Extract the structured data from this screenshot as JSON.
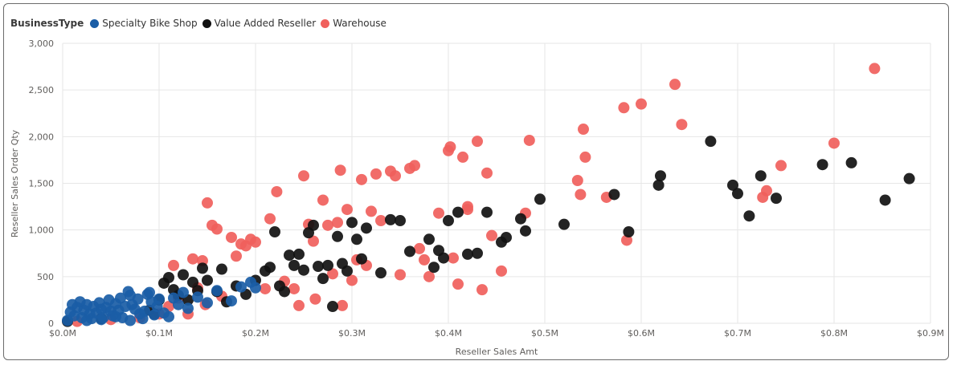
{
  "chart_data": {
    "type": "scatter",
    "title": "",
    "xlabel": "Reseller Sales Amt",
    "ylabel": "Reseller Sales Order Qty",
    "xlim": [
      0,
      0.9
    ],
    "ylim": [
      0,
      3000
    ],
    "x_unit": "$M",
    "xticks": [
      0,
      0.1,
      0.2,
      0.3,
      0.4,
      0.5,
      0.6,
      0.7,
      0.8,
      0.9
    ],
    "xtick_labels": [
      "$0.0M",
      "$0.1M",
      "$0.2M",
      "$0.3M",
      "$0.4M",
      "$0.5M",
      "$0.6M",
      "$0.7M",
      "$0.8M",
      "$0.9M"
    ],
    "yticks": [
      0,
      500,
      1000,
      1500,
      2000,
      2500,
      3000
    ],
    "ytick_labels": [
      "0",
      "500",
      "1,000",
      "1,500",
      "2,000",
      "2,500",
      "3,000"
    ],
    "grid": true,
    "legend": {
      "title": "BusinessType",
      "placement": "top-left"
    },
    "series": [
      {
        "name": "Specialty Bike Shop",
        "color": "#1a5da6",
        "points": [
          [
            0.005,
            30
          ],
          [
            0.008,
            120
          ],
          [
            0.01,
            200
          ],
          [
            0.012,
            80
          ],
          [
            0.015,
            170
          ],
          [
            0.018,
            230
          ],
          [
            0.02,
            60
          ],
          [
            0.022,
            140
          ],
          [
            0.025,
            200
          ],
          [
            0.028,
            100
          ],
          [
            0.03,
            50
          ],
          [
            0.032,
            180
          ],
          [
            0.035,
            110
          ],
          [
            0.038,
            220
          ],
          [
            0.04,
            150
          ],
          [
            0.042,
            60
          ],
          [
            0.045,
            170
          ],
          [
            0.048,
            250
          ],
          [
            0.05,
            130
          ],
          [
            0.052,
            80
          ],
          [
            0.055,
            210
          ],
          [
            0.058,
            140
          ],
          [
            0.06,
            270
          ],
          [
            0.062,
            60
          ],
          [
            0.065,
            180
          ],
          [
            0.068,
            340
          ],
          [
            0.07,
            300
          ],
          [
            0.072,
            200
          ],
          [
            0.075,
            150
          ],
          [
            0.078,
            260
          ],
          [
            0.08,
            100
          ],
          [
            0.083,
            50
          ],
          [
            0.085,
            130
          ],
          [
            0.088,
            310
          ],
          [
            0.09,
            330
          ],
          [
            0.092,
            230
          ],
          [
            0.095,
            90
          ],
          [
            0.098,
            180
          ],
          [
            0.1,
            260
          ],
          [
            0.105,
            110
          ],
          [
            0.11,
            70
          ],
          [
            0.115,
            270
          ],
          [
            0.12,
            200
          ],
          [
            0.125,
            330
          ],
          [
            0.13,
            160
          ],
          [
            0.14,
            280
          ],
          [
            0.15,
            220
          ],
          [
            0.16,
            350
          ],
          [
            0.175,
            240
          ],
          [
            0.185,
            390
          ],
          [
            0.195,
            440
          ],
          [
            0.2,
            380
          ],
          [
            0.025,
            30
          ],
          [
            0.04,
            40
          ],
          [
            0.055,
            70
          ],
          [
            0.07,
            30
          ]
        ]
      },
      {
        "name": "Value Added Reseller",
        "color": "#111111",
        "points": [
          [
            0.005,
            20
          ],
          [
            0.04,
            50
          ],
          [
            0.09,
            140
          ],
          [
            0.095,
            100
          ],
          [
            0.1,
            250
          ],
          [
            0.105,
            430
          ],
          [
            0.11,
            490
          ],
          [
            0.115,
            360
          ],
          [
            0.12,
            300
          ],
          [
            0.125,
            520
          ],
          [
            0.13,
            250
          ],
          [
            0.135,
            440
          ],
          [
            0.14,
            350
          ],
          [
            0.145,
            590
          ],
          [
            0.15,
            460
          ],
          [
            0.16,
            340
          ],
          [
            0.165,
            580
          ],
          [
            0.17,
            230
          ],
          [
            0.18,
            400
          ],
          [
            0.19,
            310
          ],
          [
            0.2,
            460
          ],
          [
            0.21,
            560
          ],
          [
            0.215,
            600
          ],
          [
            0.22,
            980
          ],
          [
            0.225,
            400
          ],
          [
            0.23,
            340
          ],
          [
            0.235,
            730
          ],
          [
            0.24,
            620
          ],
          [
            0.245,
            740
          ],
          [
            0.25,
            570
          ],
          [
            0.255,
            970
          ],
          [
            0.26,
            1050
          ],
          [
            0.265,
            610
          ],
          [
            0.27,
            480
          ],
          [
            0.275,
            620
          ],
          [
            0.28,
            180
          ],
          [
            0.285,
            930
          ],
          [
            0.29,
            640
          ],
          [
            0.295,
            560
          ],
          [
            0.3,
            1080
          ],
          [
            0.305,
            900
          ],
          [
            0.31,
            690
          ],
          [
            0.315,
            1020
          ],
          [
            0.33,
            540
          ],
          [
            0.34,
            1110
          ],
          [
            0.35,
            1100
          ],
          [
            0.36,
            770
          ],
          [
            0.38,
            900
          ],
          [
            0.385,
            600
          ],
          [
            0.39,
            780
          ],
          [
            0.395,
            700
          ],
          [
            0.4,
            1100
          ],
          [
            0.41,
            1190
          ],
          [
            0.42,
            740
          ],
          [
            0.43,
            750
          ],
          [
            0.44,
            1190
          ],
          [
            0.455,
            870
          ],
          [
            0.46,
            920
          ],
          [
            0.475,
            1120
          ],
          [
            0.48,
            990
          ],
          [
            0.495,
            1330
          ],
          [
            0.52,
            1060
          ],
          [
            0.572,
            1380
          ],
          [
            0.587,
            980
          ],
          [
            0.618,
            1480
          ],
          [
            0.62,
            1580
          ],
          [
            0.672,
            1950
          ],
          [
            0.695,
            1480
          ],
          [
            0.7,
            1390
          ],
          [
            0.712,
            1150
          ],
          [
            0.724,
            1580
          ],
          [
            0.74,
            1340
          ],
          [
            0.788,
            1700
          ],
          [
            0.818,
            1720
          ],
          [
            0.853,
            1320
          ],
          [
            0.878,
            1550
          ]
        ]
      },
      {
        "name": "Warehouse",
        "color": "#f0605c",
        "points": [
          [
            0.015,
            20
          ],
          [
            0.05,
            40
          ],
          [
            0.08,
            60
          ],
          [
            0.1,
            100
          ],
          [
            0.11,
            180
          ],
          [
            0.115,
            620
          ],
          [
            0.12,
            270
          ],
          [
            0.13,
            100
          ],
          [
            0.135,
            690
          ],
          [
            0.14,
            380
          ],
          [
            0.145,
            670
          ],
          [
            0.148,
            200
          ],
          [
            0.15,
            1290
          ],
          [
            0.155,
            1050
          ],
          [
            0.16,
            1010
          ],
          [
            0.165,
            290
          ],
          [
            0.175,
            920
          ],
          [
            0.18,
            720
          ],
          [
            0.185,
            850
          ],
          [
            0.19,
            830
          ],
          [
            0.195,
            900
          ],
          [
            0.2,
            870
          ],
          [
            0.21,
            370
          ],
          [
            0.215,
            1120
          ],
          [
            0.222,
            1410
          ],
          [
            0.23,
            450
          ],
          [
            0.24,
            370
          ],
          [
            0.245,
            190
          ],
          [
            0.25,
            1580
          ],
          [
            0.255,
            1060
          ],
          [
            0.26,
            880
          ],
          [
            0.262,
            260
          ],
          [
            0.27,
            1320
          ],
          [
            0.275,
            1050
          ],
          [
            0.28,
            530
          ],
          [
            0.285,
            1080
          ],
          [
            0.288,
            1640
          ],
          [
            0.29,
            190
          ],
          [
            0.295,
            1220
          ],
          [
            0.3,
            460
          ],
          [
            0.305,
            680
          ],
          [
            0.31,
            1540
          ],
          [
            0.315,
            620
          ],
          [
            0.32,
            1200
          ],
          [
            0.325,
            1600
          ],
          [
            0.33,
            1100
          ],
          [
            0.34,
            1630
          ],
          [
            0.345,
            1580
          ],
          [
            0.35,
            520
          ],
          [
            0.36,
            1660
          ],
          [
            0.365,
            1690
          ],
          [
            0.37,
            800
          ],
          [
            0.375,
            680
          ],
          [
            0.38,
            500
          ],
          [
            0.39,
            1180
          ],
          [
            0.4,
            1850
          ],
          [
            0.402,
            1890
          ],
          [
            0.405,
            700
          ],
          [
            0.41,
            420
          ],
          [
            0.415,
            1780
          ],
          [
            0.42,
            1250
          ],
          [
            0.43,
            1950
          ],
          [
            0.435,
            360
          ],
          [
            0.44,
            1610
          ],
          [
            0.445,
            940
          ],
          [
            0.48,
            1180
          ],
          [
            0.484,
            1960
          ],
          [
            0.534,
            1530
          ],
          [
            0.537,
            1380
          ],
          [
            0.54,
            2080
          ],
          [
            0.542,
            1780
          ],
          [
            0.564,
            1350
          ],
          [
            0.582,
            2310
          ],
          [
            0.585,
            890
          ],
          [
            0.6,
            2350
          ],
          [
            0.635,
            2560
          ],
          [
            0.642,
            2130
          ],
          [
            0.726,
            1350
          ],
          [
            0.73,
            1420
          ],
          [
            0.745,
            1690
          ],
          [
            0.8,
            1930
          ],
          [
            0.842,
            2730
          ],
          [
            0.42,
            1220
          ],
          [
            0.455,
            560
          ]
        ]
      }
    ]
  }
}
